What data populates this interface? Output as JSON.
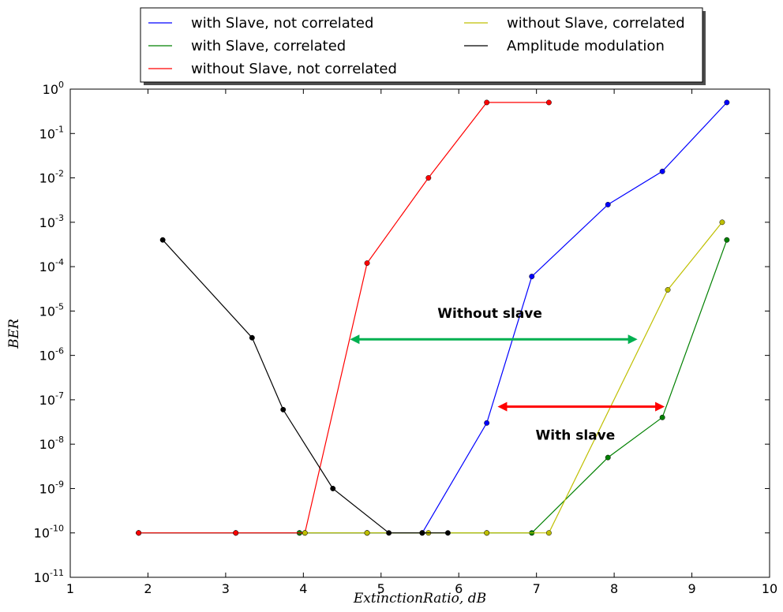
{
  "chart_data": {
    "type": "line",
    "xlabel": "ExtinctionRatio, dB",
    "ylabel": "BER",
    "xlim": [
      1,
      10
    ],
    "ylim": [
      1e-11,
      1
    ],
    "yscale": "log",
    "xticks": [
      1,
      2,
      3,
      4,
      5,
      6,
      7,
      8,
      9,
      10
    ],
    "yticks": [
      {
        "base": "10",
        "exp": "0"
      },
      {
        "base": "10",
        "exp": "-1"
      },
      {
        "base": "10",
        "exp": "-2"
      },
      {
        "base": "10",
        "exp": "-3"
      },
      {
        "base": "10",
        "exp": "-4"
      },
      {
        "base": "10",
        "exp": "-5"
      },
      {
        "base": "10",
        "exp": "-6"
      },
      {
        "base": "10",
        "exp": "-7"
      },
      {
        "base": "10",
        "exp": "-8"
      },
      {
        "base": "10",
        "exp": "-9"
      },
      {
        "base": "10",
        "exp": "-10"
      },
      {
        "base": "10",
        "exp": "-11"
      }
    ],
    "grid": false,
    "legend_position": "top, above plot",
    "series": [
      {
        "name": "with Slave, not correlated",
        "color": "#0000ff",
        "x": [
          1.88,
          3.13,
          3.95,
          4.82,
          5.53,
          6.36,
          6.94,
          7.92,
          8.62,
          9.45
        ],
        "y": [
          1e-10,
          1e-10,
          1e-10,
          1e-10,
          1e-10,
          3e-08,
          6e-05,
          0.0025,
          0.014,
          0.5
        ]
      },
      {
        "name": "with Slave, correlated",
        "color": "#008000",
        "x": [
          1.88,
          3.13,
          3.95,
          4.82,
          5.53,
          6.36,
          6.94,
          7.92,
          8.62,
          9.45
        ],
        "y": [
          1e-10,
          1e-10,
          1e-10,
          1e-10,
          1e-10,
          1e-10,
          1e-10,
          5e-09,
          4e-08,
          0.0004
        ]
      },
      {
        "name": "without Slave, not correlated",
        "color": "#ff0000",
        "x": [
          1.88,
          3.13,
          4.02,
          4.82,
          5.61,
          6.36,
          7.16
        ],
        "y": [
          1e-10,
          1e-10,
          1e-10,
          0.00012,
          0.01,
          0.5,
          0.5
        ]
      },
      {
        "name": "without Slave, correlated",
        "color": "#bfbf00",
        "x": [
          4.02,
          4.82,
          5.61,
          6.36,
          7.16,
          8.69,
          9.39
        ],
        "y": [
          1e-10,
          1e-10,
          1e-10,
          1e-10,
          1e-10,
          3e-05,
          0.001
        ]
      },
      {
        "name": "Amplitude modulation",
        "color": "#000000",
        "x": [
          2.19,
          3.34,
          3.74,
          4.38,
          5.1,
          5.53,
          5.86
        ],
        "y": [
          0.0004,
          2.5e-06,
          6e-08,
          1e-09,
          1e-10,
          1e-10,
          1e-10
        ]
      }
    ],
    "annotations": [
      {
        "text": "Without slave",
        "x1": 4.6,
        "x2": 8.3,
        "y": 2.3e-06,
        "color": "#00b050",
        "label_x": 6.4,
        "label_y": 9e-06
      },
      {
        "text": "With slave",
        "x1": 6.5,
        "x2": 8.65,
        "y": 7e-08,
        "color": "#ff0000",
        "label_x": 7.5,
        "label_y": 1.6e-08
      }
    ]
  }
}
